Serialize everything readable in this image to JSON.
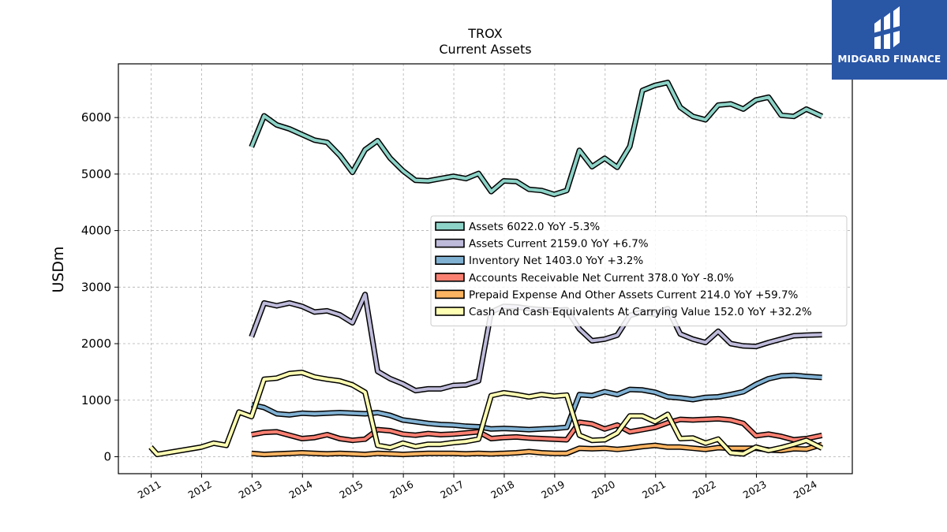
{
  "brand": {
    "name": "MIDGARD FINANCE",
    "bg_color": "#2a56a6"
  },
  "chart_data": {
    "type": "line",
    "title": "TROX",
    "subtitle": "Current  Assets",
    "xlabel": "",
    "ylabel": "USDm",
    "xlim": [
      2010.35,
      2024.9
    ],
    "ylim": [
      -300,
      6950
    ],
    "yticks": [
      0,
      1000,
      2000,
      3000,
      4000,
      5000,
      6000
    ],
    "xticks": [
      2011,
      2012,
      2013,
      2014,
      2015,
      2016,
      2017,
      2018,
      2019,
      2020,
      2021,
      2022,
      2023,
      2024
    ],
    "grid": true,
    "legend_position": "center-right",
    "series": [
      {
        "name": "Assets",
        "legend": "Assets  6022.0 YoY -5.3%",
        "color": "#8dd3c7",
        "x": [
          2012.99,
          2013.24,
          2013.49,
          2013.74,
          2013.99,
          2014.24,
          2014.49,
          2014.74,
          2014.99,
          2015.24,
          2015.49,
          2015.74,
          2015.99,
          2016.24,
          2016.49,
          2016.74,
          2016.99,
          2017.24,
          2017.49,
          2017.74,
          2017.99,
          2018.24,
          2018.49,
          2018.74,
          2018.99,
          2019.24,
          2019.49,
          2019.74,
          2019.99,
          2020.24,
          2020.49,
          2020.74,
          2020.99,
          2021.24,
          2021.49,
          2021.74,
          2021.99,
          2022.24,
          2022.49,
          2022.74,
          2022.99,
          2023.24,
          2023.49,
          2023.74,
          2023.99,
          2024.3
        ],
        "y": [
          5480,
          6030,
          5870,
          5800,
          5700,
          5600,
          5560,
          5330,
          5030,
          5430,
          5590,
          5280,
          5060,
          4890,
          4880,
          4920,
          4960,
          4920,
          5010,
          4690,
          4880,
          4870,
          4730,
          4710,
          4640,
          4710,
          5420,
          5130,
          5280,
          5120,
          5490,
          6480,
          6570,
          6620,
          6180,
          6020,
          5960,
          6220,
          6240,
          6150,
          6310,
          6360,
          6040,
          6020,
          6150,
          6022
        ]
      },
      {
        "name": "Assets Current",
        "legend": "Assets Current  2159.0 YoY +6.7%",
        "color": "#bebada",
        "x": [
          2012.99,
          2013.24,
          2013.49,
          2013.74,
          2013.99,
          2014.24,
          2014.49,
          2014.74,
          2014.99,
          2015.24,
          2015.49,
          2015.74,
          2015.99,
          2016.24,
          2016.49,
          2016.74,
          2016.99,
          2017.24,
          2017.49,
          2017.74,
          2017.99,
          2018.24,
          2018.49,
          2018.74,
          2018.99,
          2019.24,
          2019.49,
          2019.74,
          2019.99,
          2020.24,
          2020.49,
          2020.74,
          2020.99,
          2021.24,
          2021.49,
          2021.74,
          2021.99,
          2022.24,
          2022.49,
          2022.74,
          2022.99,
          2023.24,
          2023.49,
          2023.74,
          2023.99,
          2024.3
        ],
        "y": [
          2120,
          2720,
          2670,
          2720,
          2660,
          2560,
          2580,
          2510,
          2370,
          2870,
          1510,
          1380,
          1290,
          1170,
          1200,
          1200,
          1260,
          1270,
          1340,
          2560,
          2660,
          2650,
          2620,
          2600,
          2590,
          2600,
          2260,
          2050,
          2080,
          2150,
          2500,
          2560,
          2520,
          2620,
          2170,
          2080,
          2020,
          2220,
          2000,
          1960,
          1950,
          2020,
          2080,
          2140,
          2150,
          2159
        ]
      },
      {
        "name": "Inventory Net",
        "legend": "Inventory Net  1403.0 YoY +3.2%",
        "color": "#80b1d3",
        "x": [
          2012.99,
          2013.24,
          2013.49,
          2013.74,
          2013.99,
          2014.24,
          2014.49,
          2014.74,
          2014.99,
          2015.24,
          2015.49,
          2015.74,
          2015.99,
          2016.24,
          2016.49,
          2016.74,
          2016.99,
          2017.24,
          2017.49,
          2017.74,
          2017.99,
          2018.24,
          2018.49,
          2018.74,
          2018.99,
          2019.24,
          2019.49,
          2019.74,
          2019.99,
          2020.24,
          2020.49,
          2020.74,
          2020.99,
          2021.24,
          2021.49,
          2021.74,
          2021.99,
          2022.24,
          2022.49,
          2022.74,
          2022.99,
          2023.24,
          2023.49,
          2023.74,
          2023.99,
          2024.3
        ],
        "y": [
          920,
          870,
          760,
          740,
          770,
          760,
          770,
          780,
          770,
          760,
          780,
          730,
          650,
          620,
          590,
          570,
          560,
          540,
          530,
          490,
          500,
          490,
          480,
          490,
          500,
          520,
          1100,
          1080,
          1150,
          1100,
          1190,
          1180,
          1140,
          1060,
          1040,
          1010,
          1050,
          1060,
          1100,
          1150,
          1280,
          1380,
          1430,
          1440,
          1420,
          1403
        ]
      },
      {
        "name": "Accounts Receivable Net Current",
        "legend": "Accounts Receivable Net Current  378.0 YoY -8.0%",
        "color": "#fb8072",
        "x": [
          2012.99,
          2013.24,
          2013.49,
          2013.74,
          2013.99,
          2014.24,
          2014.49,
          2014.74,
          2014.99,
          2015.24,
          2015.49,
          2015.74,
          2015.99,
          2016.24,
          2016.49,
          2016.74,
          2016.99,
          2017.24,
          2017.49,
          2017.74,
          2017.99,
          2018.24,
          2018.49,
          2018.74,
          2018.99,
          2019.24,
          2019.49,
          2019.74,
          2019.99,
          2020.24,
          2020.49,
          2020.74,
          2020.99,
          2021.24,
          2021.49,
          2021.74,
          2021.99,
          2022.24,
          2022.49,
          2022.74,
          2022.99,
          2023.24,
          2023.49,
          2023.74,
          2023.99,
          2024.3
        ],
        "y": [
          390,
          430,
          440,
          380,
          320,
          340,
          390,
          320,
          290,
          310,
          480,
          460,
          400,
          380,
          410,
          390,
          400,
          420,
          440,
          320,
          340,
          350,
          330,
          320,
          310,
          300,
          610,
          580,
          490,
          560,
          440,
          480,
          520,
          600,
          660,
          650,
          660,
          670,
          650,
          590,
          370,
          400,
          360,
          300,
          320,
          378
        ]
      },
      {
        "name": "Prepaid Expense And Other Assets Current",
        "legend": "Prepaid Expense And Other Assets Current  214.0 YoY +59.7%",
        "color": "#fdb462",
        "x": [
          2012.99,
          2013.24,
          2013.49,
          2013.74,
          2013.99,
          2014.24,
          2014.49,
          2014.74,
          2014.99,
          2015.24,
          2015.49,
          2015.74,
          2015.99,
          2016.24,
          2016.49,
          2016.74,
          2016.99,
          2017.24,
          2017.49,
          2017.74,
          2017.99,
          2018.24,
          2018.49,
          2018.74,
          2018.99,
          2019.24,
          2019.49,
          2019.74,
          2019.99,
          2020.24,
          2020.49,
          2020.74,
          2020.99,
          2021.24,
          2021.49,
          2021.74,
          2021.99,
          2022.24,
          2022.49,
          2022.74,
          2022.99,
          2023.24,
          2023.49,
          2023.74,
          2023.99,
          2024.3
        ],
        "y": [
          60,
          40,
          50,
          60,
          70,
          60,
          50,
          60,
          50,
          40,
          60,
          50,
          40,
          50,
          60,
          60,
          60,
          50,
          60,
          50,
          60,
          70,
          90,
          70,
          60,
          60,
          150,
          140,
          150,
          130,
          150,
          180,
          200,
          170,
          170,
          150,
          130,
          160,
          150,
          150,
          150,
          120,
          110,
          140,
          134,
          214
        ]
      },
      {
        "name": "Cash And Cash Equivalents At Carrying Value",
        "legend": "Cash And Cash Equivalents At Carrying Value  152.0 YoY +32.2%",
        "color": "#ffffb3",
        "x": [
          2010.99,
          2011.12,
          2011.99,
          2012.24,
          2012.49,
          2012.74,
          2012.99,
          2013.24,
          2013.49,
          2013.74,
          2013.99,
          2014.24,
          2014.49,
          2014.74,
          2014.99,
          2015.24,
          2015.49,
          2015.74,
          2015.99,
          2016.24,
          2016.49,
          2016.74,
          2016.99,
          2017.24,
          2017.49,
          2017.74,
          2017.99,
          2018.24,
          2018.49,
          2018.74,
          2018.99,
          2019.24,
          2019.49,
          2019.74,
          2019.99,
          2020.24,
          2020.49,
          2020.74,
          2020.99,
          2021.24,
          2021.49,
          2021.74,
          2021.99,
          2022.24,
          2022.49,
          2022.74,
          2022.99,
          2023.24,
          2023.49,
          2023.74,
          2023.99,
          2024.3
        ],
        "y": [
          170,
          40,
          170,
          240,
          200,
          790,
          710,
          1370,
          1390,
          1470,
          1490,
          1410,
          1370,
          1340,
          1270,
          1140,
          200,
          160,
          240,
          180,
          220,
          220,
          250,
          270,
          310,
          1080,
          1130,
          1100,
          1060,
          1100,
          1070,
          1090,
          380,
          290,
          300,
          420,
          720,
          720,
          620,
          750,
          320,
          330,
          240,
          310,
          70,
          50,
          170,
          110,
          160,
          220,
          290,
          152
        ]
      }
    ]
  }
}
